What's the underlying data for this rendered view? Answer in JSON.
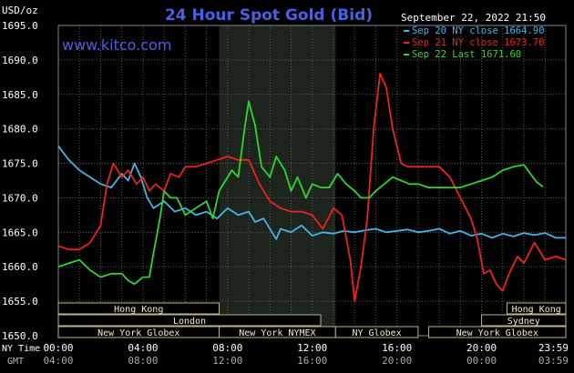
{
  "header": {
    "units": "USD/oz",
    "title": "24 Hour Spot Gold (Bid)",
    "datetime": "September 22, 2022 21:50",
    "website": "www.kitco.com"
  },
  "colors": {
    "background": "#000000",
    "grid": "#5a5a5a",
    "highlight": "#1d241d",
    "title": "#4b5fe0",
    "website": "#4b5fe0",
    "text": "#ffffff",
    "session_text": "#f5ecc8",
    "session_border": "#bdb38a",
    "sep20": "#44b3e6",
    "sep21": "#e8241b",
    "sep22": "#2fd629"
  },
  "legend": [
    {
      "key": "sep20",
      "label": "Sep 20 NY close 1664.90"
    },
    {
      "key": "sep21",
      "label": "Sep 21 NY close 1673.70"
    },
    {
      "key": "sep22",
      "label": "Sep 22 Last 1671.60"
    }
  ],
  "sessions": [
    {
      "label": "Hong Kong",
      "start": 0,
      "end": 7.6
    },
    {
      "label": "Hong Kong",
      "start": 21.2,
      "end": 23.98
    },
    {
      "label": "London",
      "start": 0,
      "end": 12.4
    },
    {
      "label": "Sydney",
      "start": 20,
      "end": 23.98
    },
    {
      "label": "New York Globex",
      "start": 0,
      "end": 7.6
    },
    {
      "label": "New York NYMEX",
      "start": 7.6,
      "end": 13.1
    },
    {
      "label": "NY Globex",
      "start": 13.1,
      "end": 17
    },
    {
      "label": "New York Globex",
      "start": 17.5,
      "end": 23.98
    }
  ],
  "time_axis": {
    "ny_label": "NY Time",
    "gmt_label": "GMT",
    "ny_ticks": [
      "00:00",
      "04:00",
      "08:00",
      "12:00",
      "16:00",
      "20:00",
      "23:59"
    ],
    "gmt_ticks": [
      "04:00",
      "08:00",
      "12:00",
      "16:00",
      "20:00",
      "00:00",
      "03:59"
    ]
  },
  "chart_data": {
    "type": "line",
    "title": "24 Hour Spot Gold (Bid)",
    "ylabel": "USD/oz",
    "ylim": [
      1650,
      1695
    ],
    "xlim": [
      0,
      23.98
    ],
    "x_unit": "hours (NY time)",
    "y_ticks": [
      1650,
      1655,
      1660,
      1665,
      1670,
      1675,
      1680,
      1685,
      1690,
      1695
    ],
    "grid": true,
    "legend_position": "top-right",
    "highlight_region": [
      7.6,
      13.1
    ],
    "series": [
      {
        "name": "Sep 20 NY close 1664.90",
        "color_key": "sep20",
        "points": [
          [
            0,
            1677.5
          ],
          [
            0.5,
            1675.5
          ],
          [
            1,
            1674
          ],
          [
            1.5,
            1673
          ],
          [
            2,
            1672
          ],
          [
            2.5,
            1671.5
          ],
          [
            3,
            1673.5
          ],
          [
            3.3,
            1672.5
          ],
          [
            3.6,
            1675
          ],
          [
            3.9,
            1673
          ],
          [
            4.2,
            1670
          ],
          [
            4.5,
            1668.5
          ],
          [
            5,
            1669.5
          ],
          [
            5.5,
            1668
          ],
          [
            6,
            1668.5
          ],
          [
            6.5,
            1667.5
          ],
          [
            7,
            1668
          ],
          [
            7.5,
            1667
          ],
          [
            8,
            1668.5
          ],
          [
            8.5,
            1667.5
          ],
          [
            9,
            1668
          ],
          [
            9.3,
            1666.5
          ],
          [
            9.7,
            1667
          ],
          [
            10,
            1665.5
          ],
          [
            10.3,
            1664
          ],
          [
            10.5,
            1665.5
          ],
          [
            11,
            1665
          ],
          [
            11.5,
            1666
          ],
          [
            12,
            1664.5
          ],
          [
            12.5,
            1665
          ],
          [
            13,
            1664.8
          ],
          [
            13.5,
            1665.2
          ],
          [
            14,
            1665
          ],
          [
            14.5,
            1665.3
          ],
          [
            15,
            1665.5
          ],
          [
            15.5,
            1665
          ],
          [
            16,
            1665.2
          ],
          [
            16.5,
            1665.4
          ],
          [
            17,
            1665
          ],
          [
            17.5,
            1665.2
          ],
          [
            18,
            1665.5
          ],
          [
            18.5,
            1664.8
          ],
          [
            19,
            1665.2
          ],
          [
            19.5,
            1664.5
          ],
          [
            20,
            1664.8
          ],
          [
            20.5,
            1664.2
          ],
          [
            21,
            1664.8
          ],
          [
            21.5,
            1664.4
          ],
          [
            22,
            1664.9
          ],
          [
            22.5,
            1664.6
          ],
          [
            23,
            1664.9
          ],
          [
            23.5,
            1664.2
          ],
          [
            23.98,
            1664.2
          ]
        ]
      },
      {
        "name": "Sep 21 NY close 1673.70",
        "color_key": "sep21",
        "points": [
          [
            0,
            1663
          ],
          [
            0.5,
            1662.5
          ],
          [
            1,
            1662.5
          ],
          [
            1.5,
            1663.5
          ],
          [
            2,
            1666
          ],
          [
            2.3,
            1672
          ],
          [
            2.6,
            1675
          ],
          [
            3,
            1673
          ],
          [
            3.3,
            1674
          ],
          [
            3.7,
            1672
          ],
          [
            4,
            1673
          ],
          [
            4.3,
            1671
          ],
          [
            4.6,
            1672
          ],
          [
            5,
            1671
          ],
          [
            5.3,
            1673.5
          ],
          [
            5.7,
            1673
          ],
          [
            6,
            1674.5
          ],
          [
            6.5,
            1674.5
          ],
          [
            7,
            1675
          ],
          [
            7.5,
            1675.5
          ],
          [
            8,
            1676
          ],
          [
            8.5,
            1675.5
          ],
          [
            9,
            1675.5
          ],
          [
            9.5,
            1672
          ],
          [
            10,
            1669.5
          ],
          [
            10.5,
            1668.5
          ],
          [
            11,
            1668
          ],
          [
            11.5,
            1668
          ],
          [
            12,
            1667.5
          ],
          [
            12.5,
            1665.5
          ],
          [
            13,
            1668.5
          ],
          [
            13.4,
            1667.5
          ],
          [
            13.8,
            1661
          ],
          [
            14,
            1655
          ],
          [
            14.3,
            1660
          ],
          [
            14.6,
            1667
          ],
          [
            14.9,
            1680
          ],
          [
            15.2,
            1688
          ],
          [
            15.5,
            1686
          ],
          [
            15.8,
            1680
          ],
          [
            16.2,
            1675
          ],
          [
            16.5,
            1674.5
          ],
          [
            17,
            1674.5
          ],
          [
            17.5,
            1674.5
          ],
          [
            18,
            1674.5
          ],
          [
            18.5,
            1673
          ],
          [
            19,
            1670
          ],
          [
            19.5,
            1667
          ],
          [
            19.8,
            1664
          ],
          [
            20.1,
            1659
          ],
          [
            20.4,
            1659.5
          ],
          [
            20.7,
            1657.5
          ],
          [
            21,
            1656.5
          ],
          [
            21.3,
            1659
          ],
          [
            21.7,
            1661.5
          ],
          [
            22,
            1660.5
          ],
          [
            22.5,
            1663.5
          ],
          [
            23,
            1661
          ],
          [
            23.5,
            1661.5
          ],
          [
            23.98,
            1661
          ]
        ]
      },
      {
        "name": "Sep 22 Last 1671.60",
        "color_key": "sep22",
        "points": [
          [
            0,
            1660
          ],
          [
            0.5,
            1660.5
          ],
          [
            1,
            1661
          ],
          [
            1.5,
            1659.5
          ],
          [
            2,
            1658.5
          ],
          [
            2.5,
            1659
          ],
          [
            3,
            1659
          ],
          [
            3.3,
            1658
          ],
          [
            3.6,
            1657.5
          ],
          [
            4,
            1658.5
          ],
          [
            4.3,
            1658.5
          ],
          [
            4.5,
            1662
          ],
          [
            4.8,
            1667
          ],
          [
            5,
            1671
          ],
          [
            5.3,
            1670
          ],
          [
            5.6,
            1670
          ],
          [
            6,
            1667.5
          ],
          [
            6.5,
            1668.5
          ],
          [
            7,
            1669.5
          ],
          [
            7.3,
            1667
          ],
          [
            7.6,
            1671
          ],
          [
            7.9,
            1672.5
          ],
          [
            8.2,
            1674
          ],
          [
            8.5,
            1673
          ],
          [
            8.8,
            1680
          ],
          [
            9,
            1684
          ],
          [
            9.3,
            1680.5
          ],
          [
            9.6,
            1674.5
          ],
          [
            10,
            1673
          ],
          [
            10.3,
            1676
          ],
          [
            10.7,
            1674
          ],
          [
            11,
            1671
          ],
          [
            11.3,
            1673
          ],
          [
            11.7,
            1670
          ],
          [
            12,
            1672
          ],
          [
            12.4,
            1671.5
          ],
          [
            12.8,
            1671.5
          ],
          [
            13.2,
            1673.5
          ],
          [
            13.6,
            1672
          ],
          [
            14,
            1671
          ],
          [
            14.3,
            1670
          ],
          [
            14.7,
            1670
          ],
          [
            15,
            1671
          ],
          [
            15.4,
            1672
          ],
          [
            15.8,
            1673
          ],
          [
            16.2,
            1672.5
          ],
          [
            16.6,
            1672
          ],
          [
            17,
            1672
          ],
          [
            17.5,
            1671.5
          ],
          [
            18,
            1671.5
          ],
          [
            18.5,
            1671.5
          ],
          [
            19,
            1671.5
          ],
          [
            19.5,
            1672
          ],
          [
            20,
            1672.5
          ],
          [
            20.5,
            1673
          ],
          [
            21,
            1674
          ],
          [
            21.5,
            1674.5
          ],
          [
            22,
            1674.8
          ],
          [
            22.3,
            1673.5
          ],
          [
            22.6,
            1672.3
          ],
          [
            22.9,
            1671.6
          ]
        ]
      }
    ]
  }
}
